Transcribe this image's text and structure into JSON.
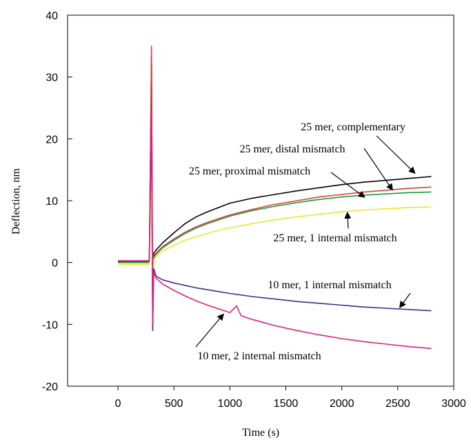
{
  "chart_data": {
    "type": "line",
    "title": "",
    "xlabel": "Time (s)",
    "ylabel": "Deflection, nm",
    "xlim": [
      -450,
      3000
    ],
    "ylim": [
      -20,
      40
    ],
    "x_ticks": [
      0,
      500,
      1000,
      1500,
      2000,
      2500,
      3000
    ],
    "y_ticks": [
      -20,
      -10,
      0,
      10,
      20,
      30,
      40
    ],
    "x_tick_labels": [
      "0",
      "500",
      "1000",
      "1500",
      "2000",
      "2500",
      "3000"
    ],
    "y_tick_labels": [
      "-20",
      "-10",
      "0",
      "10",
      "20",
      "30",
      "40"
    ],
    "grid": false,
    "legend": "none",
    "series": [
      {
        "name": "25 mer, complementary",
        "color": "#000000",
        "x": [
          0,
          100,
          200,
          280,
          300,
          310,
          320,
          340,
          400,
          500,
          600,
          700,
          800,
          900,
          1000,
          1200,
          1400,
          1600,
          1800,
          2000,
          2200,
          2400,
          2600,
          2800
        ],
        "y": [
          0,
          0,
          0,
          0,
          33.5,
          -9,
          1.5,
          2,
          3.2,
          4.8,
          6.3,
          7.4,
          8.2,
          8.9,
          9.6,
          10.4,
          11,
          11.6,
          12.1,
          12.6,
          13,
          13.3,
          13.6,
          13.9
        ]
      },
      {
        "name": "25 mer, distal mismatch",
        "color": "#e03c3c",
        "x": [
          0,
          100,
          200,
          280,
          300,
          310,
          320,
          340,
          400,
          500,
          600,
          700,
          800,
          900,
          1000,
          1200,
          1400,
          1600,
          1800,
          2000,
          2200,
          2400,
          2600,
          2800
        ],
        "y": [
          0,
          0,
          0,
          0,
          35,
          -7,
          1,
          1.5,
          2.6,
          3.8,
          4.9,
          5.8,
          6.5,
          7.1,
          7.7,
          8.6,
          9.4,
          10,
          10.6,
          11,
          11.4,
          11.7,
          12,
          12.2
        ]
      },
      {
        "name": "25 mer, proximal mismatch",
        "color": "#1a9a3a",
        "x": [
          0,
          100,
          200,
          280,
          300,
          310,
          320,
          340,
          400,
          500,
          600,
          700,
          800,
          900,
          1000,
          1200,
          1400,
          1600,
          1800,
          2000,
          2200,
          2400,
          2600,
          2800
        ],
        "y": [
          0,
          0,
          0,
          0,
          22,
          -8,
          0.8,
          1.3,
          2.4,
          3.6,
          4.7,
          5.6,
          6.3,
          6.9,
          7.5,
          8.4,
          9.1,
          9.7,
          10.2,
          10.6,
          10.9,
          11.1,
          11.3,
          11.4
        ]
      },
      {
        "name": "25 mer, 1 internal mismatch",
        "color": "#e8e830",
        "x": [
          0,
          100,
          200,
          280,
          300,
          310,
          320,
          340,
          400,
          500,
          600,
          700,
          800,
          900,
          1000,
          1200,
          1400,
          1600,
          1800,
          2000,
          2200,
          2400,
          2600,
          2800
        ],
        "y": [
          -0.3,
          -0.3,
          -0.3,
          -0.3,
          20,
          -6,
          0.5,
          1,
          1.9,
          2.8,
          3.6,
          4.2,
          4.7,
          5.2,
          5.6,
          6.3,
          6.9,
          7.4,
          7.8,
          8.2,
          8.5,
          8.7,
          8.9,
          9
        ]
      },
      {
        "name": "10 mer, 1 internal mismatch",
        "color": "#3b2d8f",
        "x": [
          0,
          100,
          200,
          280,
          300,
          310,
          320,
          340,
          400,
          500,
          600,
          700,
          800,
          900,
          1000,
          1200,
          1400,
          1600,
          1800,
          2000,
          2200,
          2400,
          2600,
          2800
        ],
        "y": [
          0.2,
          0.2,
          0.2,
          0.2,
          24,
          -11,
          -1,
          -2.2,
          -2.8,
          -3.3,
          -3.7,
          -4.1,
          -4.4,
          -4.7,
          -5,
          -5.5,
          -5.9,
          -6.3,
          -6.6,
          -6.9,
          -7.2,
          -7.4,
          -7.6,
          -7.8
        ]
      },
      {
        "name": "10 mer, 2 internal mismatch",
        "color": "#e0207a",
        "x": [
          0,
          100,
          200,
          280,
          300,
          310,
          320,
          340,
          400,
          500,
          600,
          700,
          800,
          900,
          1000,
          1060,
          1100,
          1200,
          1400,
          1600,
          1800,
          2000,
          2200,
          2400,
          2600,
          2800
        ],
        "y": [
          0.3,
          0.3,
          0.3,
          0.3,
          26,
          -10,
          -1.5,
          -2.5,
          -3.5,
          -4.5,
          -5.4,
          -6.2,
          -6.9,
          -7.5,
          -8.1,
          -7,
          -8.6,
          -9.2,
          -10.2,
          -11,
          -11.7,
          -12.3,
          -12.8,
          -13.2,
          -13.6,
          -13.9
        ]
      }
    ],
    "annotations": [
      {
        "text": "25 mer, complementary",
        "target_x": 2650,
        "target_y": 14.5
      },
      {
        "text": "25 mer, distal mismatch",
        "target_x": 2450,
        "target_y": 11.8
      },
      {
        "text": "25 mer, proximal mismatch",
        "target_x": 2200,
        "target_y": 10.6
      },
      {
        "text": "25 mer, 1 internal mismatch",
        "target_x": 2050,
        "target_y": 8
      },
      {
        "text": "10 mer, 1 internal mismatch",
        "target_x": 2520,
        "target_y": -7.2
      },
      {
        "text": "10 mer, 2 internal mismatch",
        "target_x": 940,
        "target_y": -8.4
      }
    ]
  }
}
